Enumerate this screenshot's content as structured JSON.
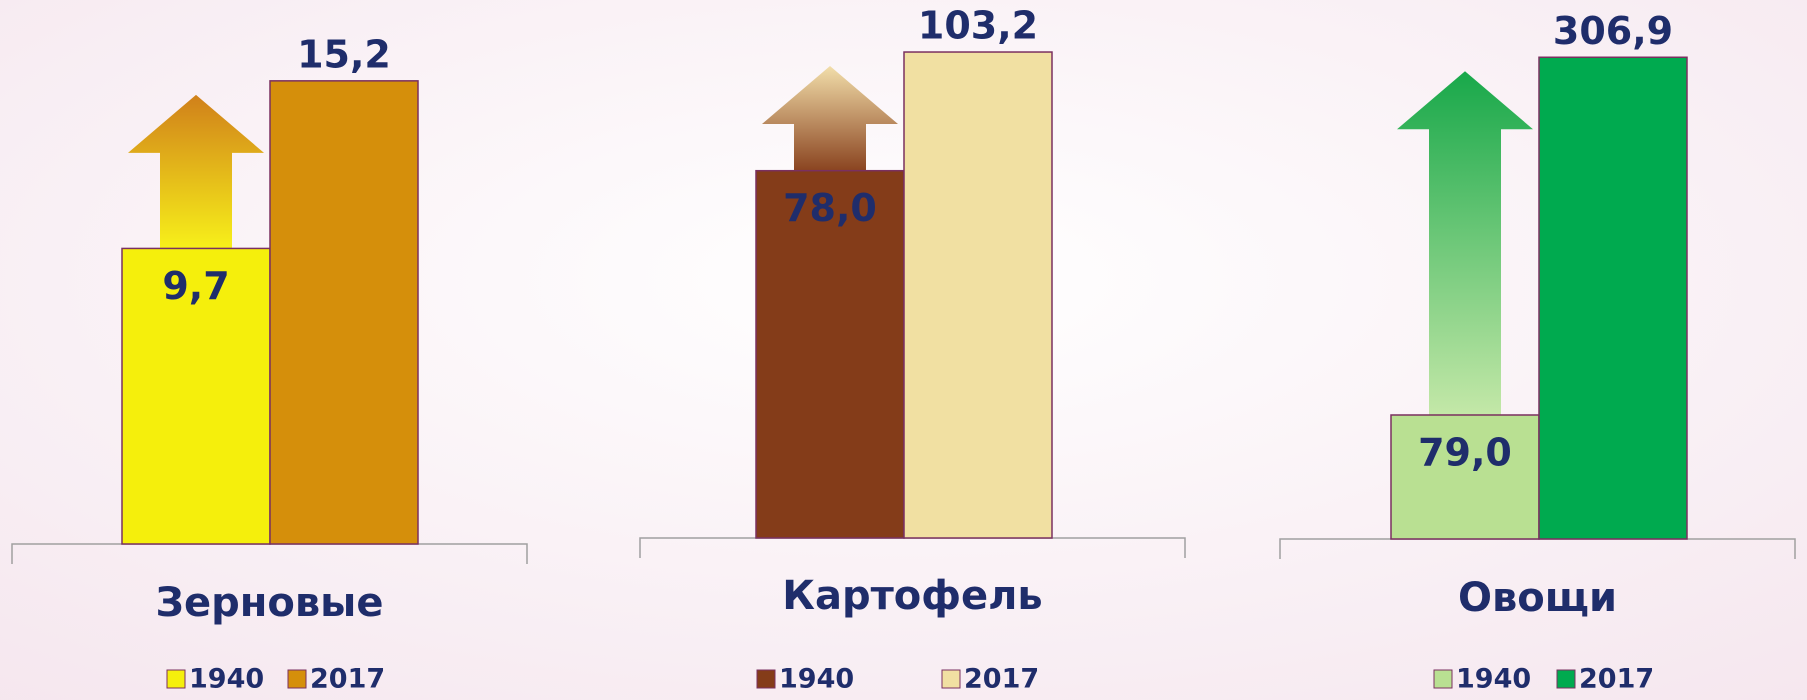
{
  "chart_data": [
    {
      "type": "bar",
      "categories": [
        "Зерновые"
      ],
      "ylim": [
        0,
        17
      ],
      "series": [
        {
          "name": "1940",
          "color": "#f5ef0c",
          "values": [
            9.7
          ],
          "value_labels": [
            "9,7"
          ]
        },
        {
          "name": "2017",
          "color": "#d58f0b",
          "values": [
            15.2
          ],
          "value_labels": [
            "15,2"
          ]
        }
      ]
    },
    {
      "type": "bar",
      "categories": [
        "Картофель"
      ],
      "ylim": [
        0,
        110
      ],
      "series": [
        {
          "name": "1940",
          "color": "#843c19",
          "values": [
            78.0
          ],
          "value_labels": [
            "78,0"
          ]
        },
        {
          "name": "2017",
          "color": "#f1e0a2",
          "values": [
            103.2
          ],
          "value_labels": [
            "103,2"
          ]
        }
      ]
    },
    {
      "type": "bar",
      "categories": [
        "Овощи"
      ],
      "ylim": [
        0,
        330
      ],
      "series": [
        {
          "name": "1940",
          "color": "#b9e092",
          "values": [
            79.0
          ],
          "value_labels": [
            "79,0"
          ]
        },
        {
          "name": "2017",
          "color": "#00aa4f",
          "values": [
            306.9
          ],
          "value_labels": [
            "306,9"
          ]
        }
      ]
    }
  ]
}
